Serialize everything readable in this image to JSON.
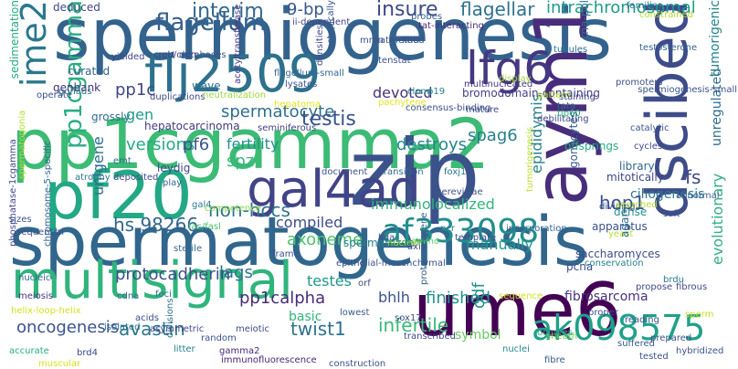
{
  "words": [
    {
      "text": "spermatogenesis",
      "color": "#31668d"
    },
    {
      "text": "spermiogenesis",
      "color": "#33638d"
    },
    {
      "text": "pp1cgamma2",
      "color": "#3cbb75"
    },
    {
      "text": "zip",
      "color": "#3b528b"
    },
    {
      "text": "dscibed",
      "color": "#3e4c8a"
    },
    {
      "text": "flj2509",
      "color": "#2d718e"
    },
    {
      "text": "multisignal",
      "color": "#2fb47c"
    },
    {
      "text": "ume6",
      "color": "#440154"
    },
    {
      "text": "pf20",
      "color": "#22a884"
    },
    {
      "text": "aym1",
      "color": "#472d7b"
    },
    {
      "text": "gal4ad",
      "color": "#414487"
    },
    {
      "text": "lfg6",
      "color": "#453781"
    },
    {
      "text": "ak098575",
      "color": "#1fa188"
    },
    {
      "text": "af333098",
      "color": "#218f8d"
    },
    {
      "text": "ime2",
      "color": "#2a788e"
    },
    {
      "text": "pp1cgamma",
      "color": "#28ae80"
    },
    {
      "text": "flagellum",
      "color": "#34618d"
    },
    {
      "text": "interim",
      "color": "#31688e"
    },
    {
      "text": "insure",
      "color": "#3e4989"
    },
    {
      "text": "flagellar",
      "color": "#2c728e"
    },
    {
      "text": "intrachromosomal",
      "color": "#1e9b8a"
    },
    {
      "text": "9-bp",
      "color": "#38598c"
    },
    {
      "text": "pp1c",
      "color": "#3f4788"
    },
    {
      "text": "spermatocyte",
      "color": "#2e6f8e"
    },
    {
      "text": "testis",
      "color": "#3a548c"
    },
    {
      "text": "spag6",
      "color": "#277f8e"
    },
    {
      "text": "epididymis",
      "color": "#26818e"
    },
    {
      "text": "bromodomain-containing",
      "color": "#433e85"
    },
    {
      "text": "tumorigenic",
      "color": "#25858e"
    },
    {
      "text": "unregulated",
      "color": "#2d708e"
    },
    {
      "text": "evolutionary",
      "color": "#30b07e"
    },
    {
      "text": "gonocytes",
      "color": "#365c8d"
    },
    {
      "text": "devoted",
      "color": "#46327e"
    },
    {
      "text": "gen",
      "color": "#1f9a8a"
    },
    {
      "text": "destroys",
      "color": "#24868e"
    },
    {
      "text": "fertility",
      "color": "#20928c"
    },
    {
      "text": "versions",
      "color": "#23a983"
    },
    {
      "text": "pf6",
      "color": "#3a538b"
    },
    {
      "text": "spz",
      "color": "#35b779"
    },
    {
      "text": "unigene",
      "color": "#2f6c8e"
    },
    {
      "text": "hs.98266",
      "color": "#31658e"
    },
    {
      "text": "non-hccs",
      "color": "#2b758e"
    },
    {
      "text": "compiled",
      "color": "#3e4c8a"
    },
    {
      "text": "immunolocalized",
      "color": "#32b67a"
    },
    {
      "text": "hop1",
      "color": "#3b518b"
    },
    {
      "text": "manually",
      "color": "#1f968b"
    },
    {
      "text": "fs",
      "color": "#3f4788"
    },
    {
      "text": "ciliogenesis",
      "color": "#2a788e"
    },
    {
      "text": "axoneme",
      "color": "#4ac16d"
    },
    {
      "text": "lags",
      "color": "#2c728e"
    },
    {
      "text": "protocadherin",
      "color": "#3c4f8a"
    },
    {
      "text": "pp1calpha",
      "color": "#472c7a"
    },
    {
      "text": "bhlh",
      "color": "#3b528b"
    },
    {
      "text": "finished",
      "color": "#1f958b"
    },
    {
      "text": "odf",
      "color": "#1f958b"
    },
    {
      "text": "oncogenesis",
      "color": "#3a548c"
    },
    {
      "text": "avastin",
      "color": "#2a778e"
    },
    {
      "text": "twist1",
      "color": "#2c718e"
    },
    {
      "text": "infertile",
      "color": "#38b977"
    },
    {
      "text": "symbol",
      "color": "#65cb5e"
    },
    {
      "text": "testes",
      "color": "#1f988b"
    },
    {
      "text": "basic",
      "color": "#2eb37c"
    },
    {
      "text": "fibrosarcoma",
      "color": "#46337f"
    },
    {
      "text": "pcna",
      "color": "#3d4e8a"
    },
    {
      "text": "sedimentation",
      "color": "#25ab82"
    },
    {
      "text": "deduced",
      "color": "#3f4889"
    },
    {
      "text": "curated",
      "color": "#355f8d"
    },
    {
      "text": "genbank",
      "color": "#472f7d"
    },
    {
      "text": "grossly",
      "color": "#2f6c8e"
    },
    {
      "text": "hepatocarcinoma",
      "color": "#443a83"
    },
    {
      "text": "leydig",
      "color": "#3f4889"
    },
    {
      "text": "atrophy",
      "color": "#2a788e"
    },
    {
      "text": "seminiferous",
      "color": "#423f85"
    },
    {
      "text": "wave",
      "color": "#2d718e"
    },
    {
      "text": "spermatozoa",
      "color": "#26828e"
    },
    {
      "text": "amino",
      "color": "#5ec962"
    },
    {
      "text": "pachytene",
      "color": "#e5e419"
    },
    {
      "text": "cerevisiae",
      "color": "#3b528b"
    },
    {
      "text": "sequence",
      "color": "#cde11d"
    },
    {
      "text": "meiosis",
      "color": "#453581"
    },
    {
      "text": "nucleic",
      "color": "#31688e"
    },
    {
      "text": "phosphatase-1cgamma",
      "color": "#3f4889"
    },
    {
      "text": "helix-loop-helix",
      "color": "#d2e21b"
    },
    {
      "text": "chromosome-5-specific",
      "color": "#33638d"
    },
    {
      "text": "accurate",
      "color": "#26ad81"
    },
    {
      "text": "proto-oncogene",
      "color": "#35608d"
    },
    {
      "text": "saccharomyces",
      "color": "#3e4c8a"
    },
    {
      "text": "apparatus",
      "color": "#3b518b"
    },
    {
      "text": "mitotically",
      "color": "#404588"
    },
    {
      "text": "library",
      "color": "#31688e"
    },
    {
      "text": "dense",
      "color": "#21918c"
    },
    {
      "text": "abnormal",
      "color": "#375b8d"
    },
    {
      "text": "dividing",
      "color": "#3b518b"
    },
    {
      "text": "yeast",
      "color": "#b8de29"
    },
    {
      "text": "offsprings",
      "color": "#25ac82"
    },
    {
      "text": "staining",
      "color": "#3e4989"
    },
    {
      "text": "debilitating",
      "color": "#3f4889"
    },
    {
      "text": "tata",
      "color": "#2e6e8e"
    },
    {
      "text": "tip60",
      "color": "#29af7f"
    },
    {
      "text": "foxj1",
      "color": "#2a768e"
    },
    {
      "text": "document",
      "color": "#3b528b"
    },
    {
      "text": "transition",
      "color": "#31668e"
    },
    {
      "text": "gamma2",
      "color": "#472a7a"
    },
    {
      "text": "brd4",
      "color": "#404688"
    },
    {
      "text": "divisions",
      "color": "#2d708e"
    },
    {
      "text": "meiotic",
      "color": "#3e4a89"
    },
    {
      "text": "acids",
      "color": "#3c4f8a"
    },
    {
      "text": "isolated",
      "color": "#2d708e"
    },
    {
      "text": "cdna",
      "color": "#33638d"
    },
    {
      "text": "foci",
      "color": "#2c728e"
    },
    {
      "text": "litter",
      "color": "#26818e"
    },
    {
      "text": "immunofluorescence",
      "color": "#482475"
    },
    {
      "text": "asymmetric",
      "color": "#404588"
    },
    {
      "text": "sterile",
      "color": "#306a8e"
    },
    {
      "text": "fas/fasl",
      "color": "#46c06f"
    },
    {
      "text": "competence",
      "color": "#8fd744"
    },
    {
      "text": "gal4",
      "color": "#287c8e"
    },
    {
      "text": "deposited",
      "color": "#3e4c8a"
    },
    {
      "text": "multinucleated",
      "color": "#463480"
    },
    {
      "text": "lysates",
      "color": "#3b528b"
    },
    {
      "text": "creb/crem",
      "color": "#423f85"
    },
    {
      "text": "flagellum-small",
      "color": "#31668e"
    },
    {
      "text": "sheath",
      "color": "#7ad151"
    },
    {
      "text": "nuclei",
      "color": "#23898e"
    },
    {
      "text": "oocytes",
      "color": "#21a685"
    },
    {
      "text": "fibre",
      "color": "#355e8d"
    },
    {
      "text": "proper",
      "color": "#3b528b"
    },
    {
      "text": "suffered",
      "color": "#365c8d"
    },
    {
      "text": "prepared",
      "color": "#3a538b"
    },
    {
      "text": "brdu",
      "color": "#2a788e"
    },
    {
      "text": "fibrous",
      "color": "#3e4a89"
    },
    {
      "text": "propose",
      "color": "#3f4788"
    },
    {
      "text": "reading",
      "color": "#3a548c"
    },
    {
      "text": "conservation",
      "color": "#26818e"
    },
    {
      "text": "agar",
      "color": "#2e6e8e"
    },
    {
      "text": "template",
      "color": "#3b528b"
    },
    {
      "text": "sperm",
      "color": "#c5e021"
    },
    {
      "text": "transcribed",
      "color": "#3f4889"
    },
    {
      "text": "sox17",
      "color": "#3e4c8a"
    },
    {
      "text": "lowest",
      "color": "#365c8d"
    },
    {
      "text": "orf",
      "color": "#3e4c8a"
    },
    {
      "text": "pcr",
      "color": "#2d708e"
    },
    {
      "text": "kda",
      "color": "#3b528b"
    },
    {
      "text": "rna-pol",
      "color": "#2c718e"
    },
    {
      "text": "constrained",
      "color": "#b5de2b"
    },
    {
      "text": "families",
      "color": "#2c728e"
    },
    {
      "text": "tubules",
      "color": "#2e6f8e"
    },
    {
      "text": "testosterone",
      "color": "#33628d"
    },
    {
      "text": "display",
      "color": "#a2da37"
    },
    {
      "text": "pattern",
      "color": "#b0dd2f"
    },
    {
      "text": "p19",
      "color": "#26828e"
    },
    {
      "text": "clone",
      "color": "#1f948c"
    },
    {
      "text": "densities",
      "color": "#3e4c8a"
    },
    {
      "text": "probes",
      "color": "#35608d"
    },
    {
      "text": "tat-interacting",
      "color": "#482878"
    },
    {
      "text": "ii-dependent",
      "color": "#404688"
    },
    {
      "text": "acetyltransferase",
      "color": "#453882"
    },
    {
      "text": "databases",
      "color": "#3b528b"
    },
    {
      "text": "yielded",
      "color": "#404588"
    },
    {
      "text": "gonads",
      "color": "#2c728e"
    },
    {
      "text": "operate",
      "color": "#3b518b"
    },
    {
      "text": "spermatogonia",
      "color": "#b2dd2d"
    },
    {
      "text": "duplications",
      "color": "#3f4889"
    },
    {
      "text": "hepatoma",
      "color": "#e2e418"
    },
    {
      "text": "neutralization",
      "color": "#9bd93c"
    },
    {
      "text": "emt",
      "color": "#2e6e8e"
    },
    {
      "text": "play",
      "color": "#33638d"
    },
    {
      "text": "frame",
      "color": "#3b528b"
    },
    {
      "text": "nuclear",
      "color": "#a5db36"
    },
    {
      "text": "axis",
      "color": "#3e4a89"
    },
    {
      "text": "epithelial-mesenchymal",
      "color": "#3b528b"
    },
    {
      "text": "consensus-binding",
      "color": "#3c4f8a"
    },
    {
      "text": "mature",
      "color": "#3b528b"
    },
    {
      "text": "cycles",
      "color": "#414487"
    },
    {
      "text": "catalytic",
      "color": "#3b528b"
    },
    {
      "text": "promoters",
      "color": "#3b528b"
    },
    {
      "text": "searched",
      "color": "#b5de2b"
    },
    {
      "text": "soft",
      "color": "#3b528b"
    },
    {
      "text": "incorporation",
      "color": "#33638d"
    },
    {
      "text": "tumorigenesis",
      "color": "#bade28"
    },
    {
      "text": "sequential",
      "color": "#3b528b"
    },
    {
      "text": "sizes",
      "color": "#3b528b"
    },
    {
      "text": "construction",
      "color": "#3b528b"
    },
    {
      "text": "hybridized",
      "color": "#3b528b"
    },
    {
      "text": "tested",
      "color": "#3b528b"
    },
    {
      "text": "muscular",
      "color": "#d8e219"
    },
    {
      "text": "random",
      "color": "#3b528b"
    },
    {
      "text": "spermiogenesis-small",
      "color": "#3b528b"
    },
    {
      "text": "ectopically",
      "color": "#3b528b"
    },
    {
      "text": "tatmethod",
      "color": "#3b528b"
    },
    {
      "text": "mnm",
      "color": "#3b528b"
    },
    {
      "text": "tenstat",
      "color": "#3b528b"
    },
    {
      "text": "flatl",
      "color": "#3b528b"
    }
  ]
}
